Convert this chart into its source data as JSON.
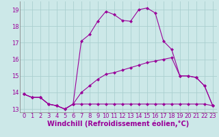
{
  "xlabel": "Windchill (Refroidissement éolien,°C)",
  "background_color": "#cce8e8",
  "grid_color": "#aacfcf",
  "line_color": "#990099",
  "xlim": [
    -0.5,
    23.5
  ],
  "ylim": [
    12.8,
    19.5
  ],
  "yticks": [
    13,
    14,
    15,
    16,
    17,
    18,
    19
  ],
  "xticks": [
    0,
    1,
    2,
    3,
    4,
    5,
    6,
    7,
    8,
    9,
    10,
    11,
    12,
    13,
    14,
    15,
    16,
    17,
    18,
    19,
    20,
    21,
    22,
    23
  ],
  "series1_x": [
    0,
    1,
    2,
    3,
    4,
    5,
    6,
    7,
    8,
    9,
    10,
    11,
    12,
    13,
    14,
    15,
    16,
    17,
    18,
    19,
    20,
    21,
    22,
    23
  ],
  "series1_y": [
    13.9,
    13.7,
    13.7,
    13.3,
    13.2,
    13.0,
    13.3,
    13.3,
    13.3,
    13.3,
    13.3,
    13.3,
    13.3,
    13.3,
    13.3,
    13.3,
    13.3,
    13.3,
    13.3,
    13.3,
    13.3,
    13.3,
    13.3,
    13.2
  ],
  "series2_x": [
    0,
    1,
    2,
    3,
    4,
    5,
    6,
    7,
    8,
    9,
    10,
    11,
    12,
    13,
    14,
    15,
    16,
    17,
    18,
    19,
    20,
    21,
    22,
    23
  ],
  "series2_y": [
    13.9,
    13.7,
    13.7,
    13.3,
    13.2,
    13.0,
    13.3,
    17.1,
    17.5,
    18.3,
    18.9,
    18.7,
    18.35,
    18.3,
    19.0,
    19.1,
    18.8,
    17.1,
    16.6,
    15.0,
    15.0,
    14.9,
    14.4,
    13.2
  ],
  "series3_x": [
    0,
    1,
    2,
    3,
    4,
    5,
    6,
    7,
    8,
    9,
    10,
    11,
    12,
    13,
    14,
    15,
    16,
    17,
    18,
    19,
    20,
    21,
    22,
    23
  ],
  "series3_y": [
    13.9,
    13.7,
    13.7,
    13.3,
    13.2,
    13.0,
    13.3,
    14.0,
    14.4,
    14.8,
    15.1,
    15.2,
    15.35,
    15.5,
    15.65,
    15.8,
    15.9,
    16.0,
    16.1,
    15.0,
    15.0,
    14.9,
    14.4,
    13.2
  ],
  "xlabel_fontsize": 7,
  "tick_fontsize": 6,
  "marker": "D",
  "markersize": 2.0,
  "linewidth": 0.8
}
